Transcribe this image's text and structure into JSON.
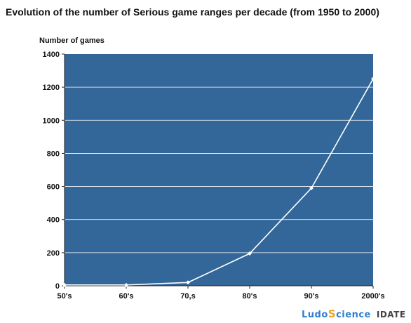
{
  "chart_data": {
    "type": "line",
    "title": "Evolution of the number of Serious game ranges per decade (from 1950 to 2000)",
    "ylabel": "Number of games",
    "xlabel": "",
    "categories": [
      "50's",
      "60's",
      "70,s",
      "80's",
      "90's",
      "2000's"
    ],
    "series": [
      {
        "values": [
          5,
          5,
          20,
          195,
          590,
          1250
        ]
      }
    ],
    "ylim": [
      0,
      1400
    ],
    "yticks": [
      0,
      200,
      400,
      600,
      800,
      1000,
      1200,
      1400
    ],
    "grid": true,
    "legend": "none",
    "colors": {
      "plot_background": "#336699",
      "line": "#ffffff",
      "grid": "#ffffff"
    }
  },
  "logos": {
    "ludoscience": {
      "part1": "Ludo",
      "part2": "S",
      "part3": "cience"
    },
    "idate": "IDATE"
  }
}
